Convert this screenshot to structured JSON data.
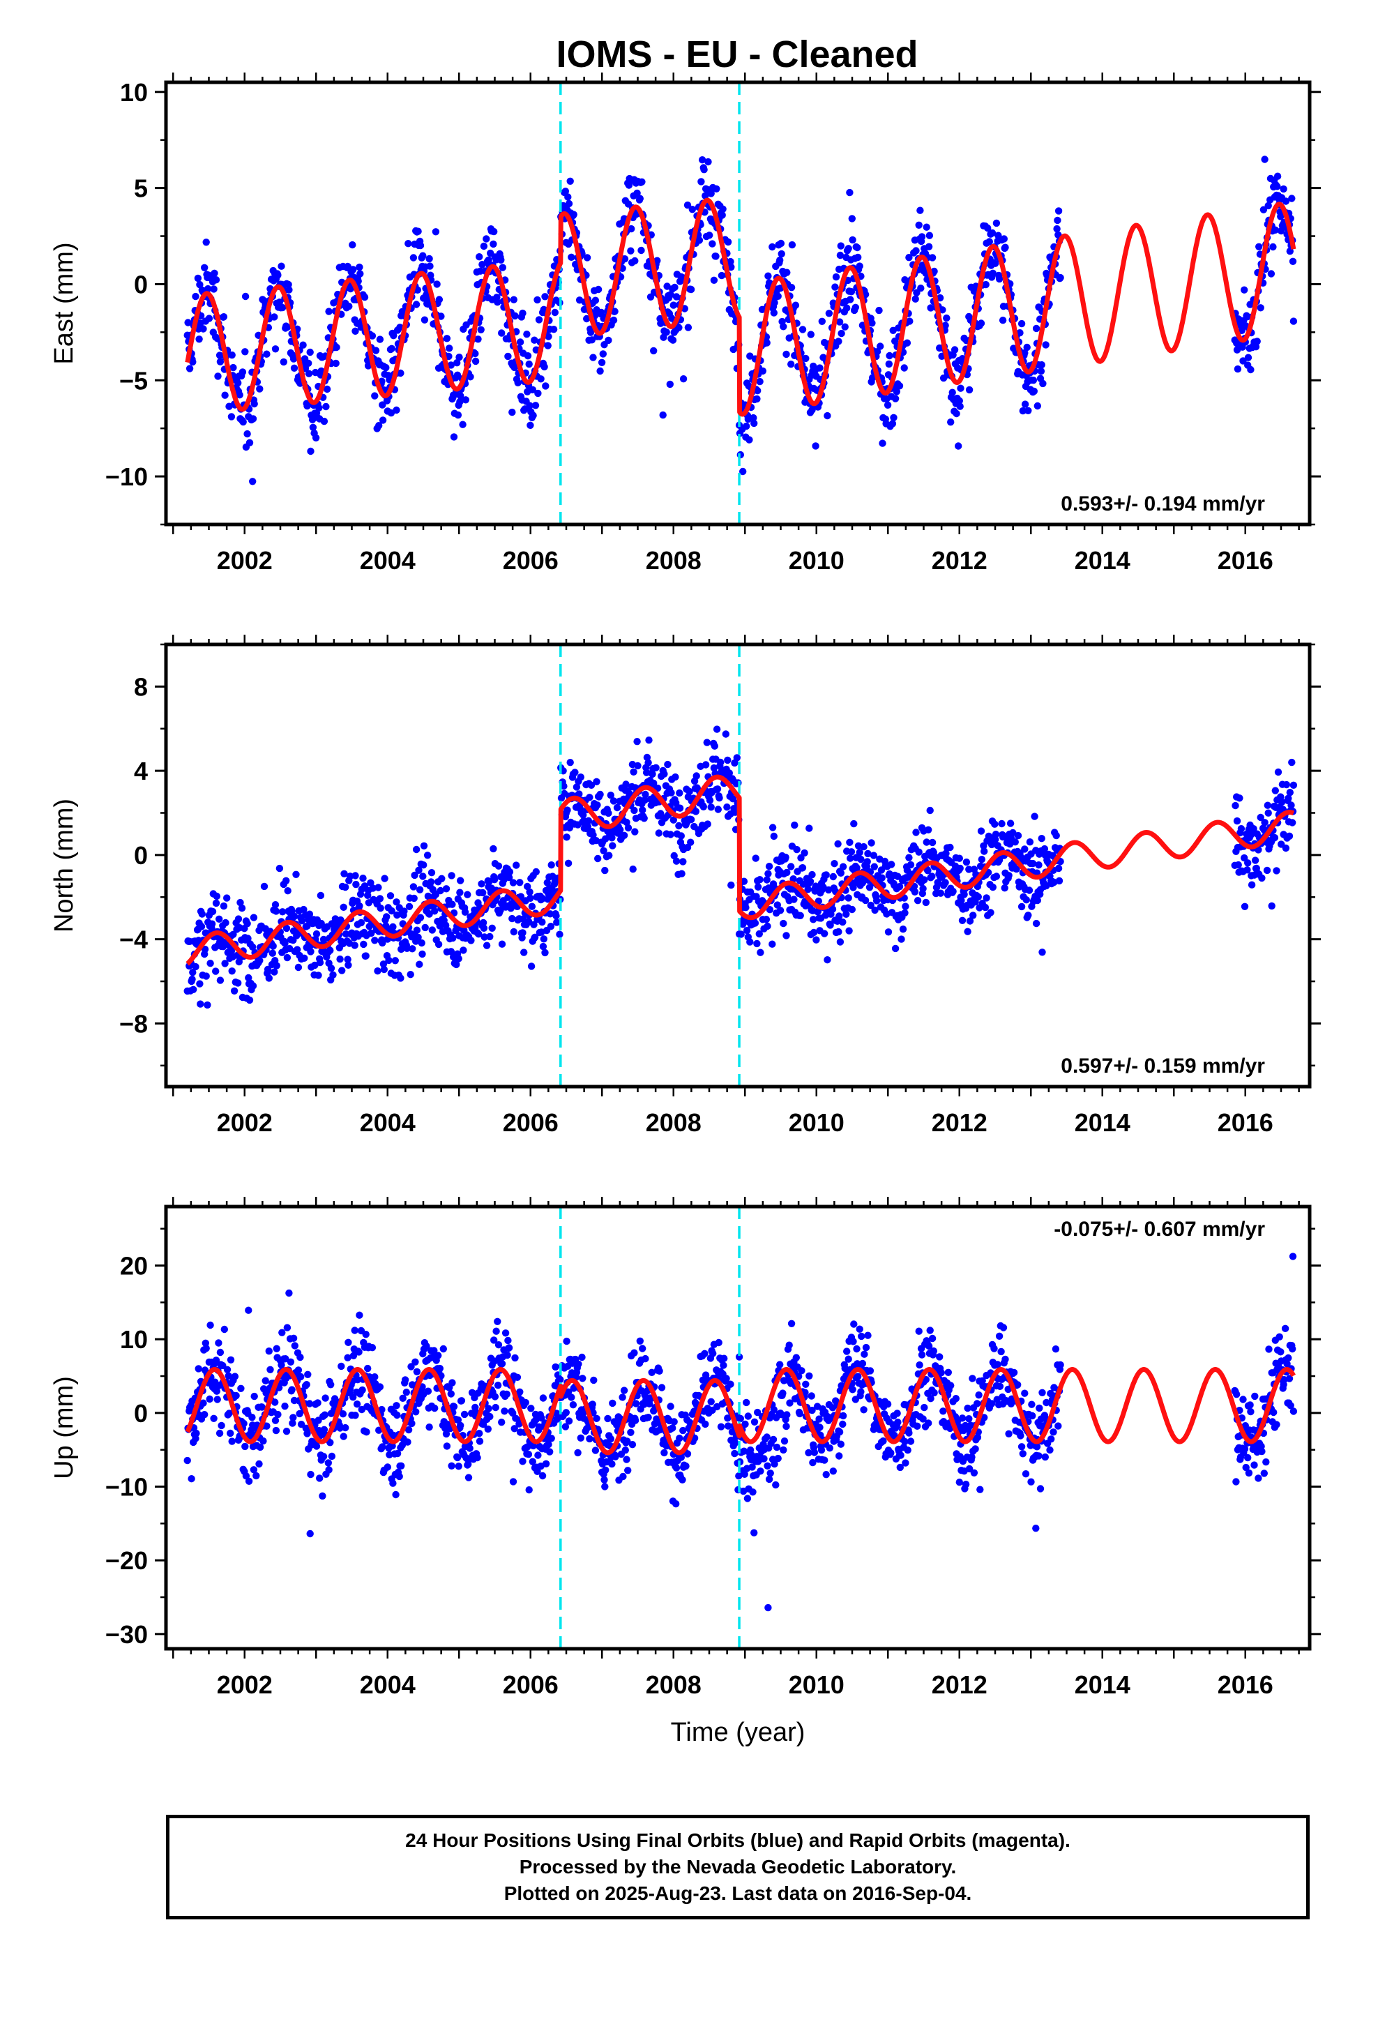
{
  "title": "IOMS  - EU - Cleaned",
  "colors": {
    "points": "#0000ff",
    "model": "#ff1010",
    "offsets": "#00e5ee",
    "frame": "#000000"
  },
  "footer": {
    "line1": "24 Hour Positions Using Final Orbits (blue) and Rapid Orbits (magenta).",
    "line2": "Processed by the Nevada Geodetic Laboratory.",
    "line3": "Plotted on 2025-Aug-23. Last data on 2016-Sep-04."
  },
  "chart_data": [
    {
      "type": "scatter",
      "component": "east",
      "ylabel": "East (mm)",
      "xlabel": "",
      "xlim": [
        2000.9,
        2016.9
      ],
      "ylim": [
        -12.5,
        10.5
      ],
      "xticks": [
        2002,
        2004,
        2006,
        2008,
        2010,
        2012,
        2014,
        2016
      ],
      "yticks": [
        -10,
        -5,
        0,
        5,
        10
      ],
      "ytick_labels": [
        "−10",
        "−5",
        "0",
        "5",
        "10"
      ],
      "rate_label": "0.593+/- 0.194 mm/yr",
      "rate_position": "bottom-right",
      "offset_epochs": [
        2006.42,
        2008.92
      ],
      "data_span": [
        2001.2,
        2016.68
      ],
      "data_gap": [
        2013.42,
        2015.85
      ],
      "model": {
        "segments": [
          {
            "start": 2001.2,
            "end": 2006.42,
            "base": -1.3,
            "trend": 0.35,
            "amplitude": 3.1,
            "peak": 2001.47
          },
          {
            "start": 2006.42,
            "end": 2008.92,
            "base": 1.0,
            "trend": 0.35,
            "amplitude": 3.2,
            "peak": 2001.47
          },
          {
            "start": 2008.92,
            "end": 2016.68,
            "base": -3.9,
            "trend": 0.55,
            "amplitude": 3.4,
            "peak": 2001.47
          }
        ]
      }
    },
    {
      "type": "scatter",
      "component": "north",
      "ylabel": "North (mm)",
      "xlabel": "",
      "xlim": [
        2000.9,
        2016.9
      ],
      "ylim": [
        -11,
        10
      ],
      "xticks": [
        2002,
        2004,
        2006,
        2008,
        2010,
        2012,
        2014,
        2016
      ],
      "yticks": [
        -8,
        -4,
        0,
        4,
        8
      ],
      "ytick_labels": [
        "−8",
        "−4",
        "0",
        "4",
        "8"
      ],
      "rate_label": "0.597+/- 0.159 mm/yr",
      "rate_position": "bottom-right",
      "offset_epochs": [
        2006.42,
        2008.92
      ],
      "data_span": [
        2001.2,
        2016.68
      ],
      "data_gap": [
        2013.42,
        2015.85
      ],
      "model": {
        "segments": [
          {
            "start": 2001.2,
            "end": 2006.42,
            "base": -1.2,
            "trend": 0.5,
            "amplitude": 0.7,
            "peak": 2001.6
          },
          {
            "start": 2006.42,
            "end": 2008.92,
            "base": 2.6,
            "trend": 0.5,
            "amplitude": 0.8,
            "peak": 2001.6
          },
          {
            "start": 2008.92,
            "end": 2016.68,
            "base": -2.8,
            "trend": 0.48,
            "amplitude": 0.7,
            "peak": 2001.6
          }
        ]
      }
    },
    {
      "type": "scatter",
      "component": "up",
      "ylabel": "Up (mm)",
      "xlabel": "Time (year)",
      "xlim": [
        2000.9,
        2016.9
      ],
      "ylim": [
        -32,
        28
      ],
      "xticks": [
        2002,
        2004,
        2006,
        2008,
        2010,
        2012,
        2014,
        2016
      ],
      "yticks": [
        -30,
        -20,
        -10,
        0,
        10,
        20
      ],
      "ytick_labels": [
        "−30",
        "−20",
        "−10",
        "0",
        "10",
        "20"
      ],
      "rate_label": "-0.075+/- 0.607 mm/yr",
      "rate_position": "top-right",
      "offset_epochs": [
        2006.42,
        2008.92
      ],
      "data_span": [
        2001.2,
        2016.68
      ],
      "data_gap": [
        2013.42,
        2015.85
      ],
      "model": {
        "segments": [
          {
            "start": 2001.2,
            "end": 2006.42,
            "base": 1.0,
            "trend": 0.0,
            "amplitude": 4.9,
            "peak": 2001.58
          },
          {
            "start": 2006.42,
            "end": 2008.92,
            "base": -0.5,
            "trend": 0.0,
            "amplitude": 4.9,
            "peak": 2001.58
          },
          {
            "start": 2008.92,
            "end": 2016.68,
            "base": 1.0,
            "trend": 0.0,
            "amplitude": 4.9,
            "peak": 2001.58
          }
        ]
      }
    }
  ]
}
